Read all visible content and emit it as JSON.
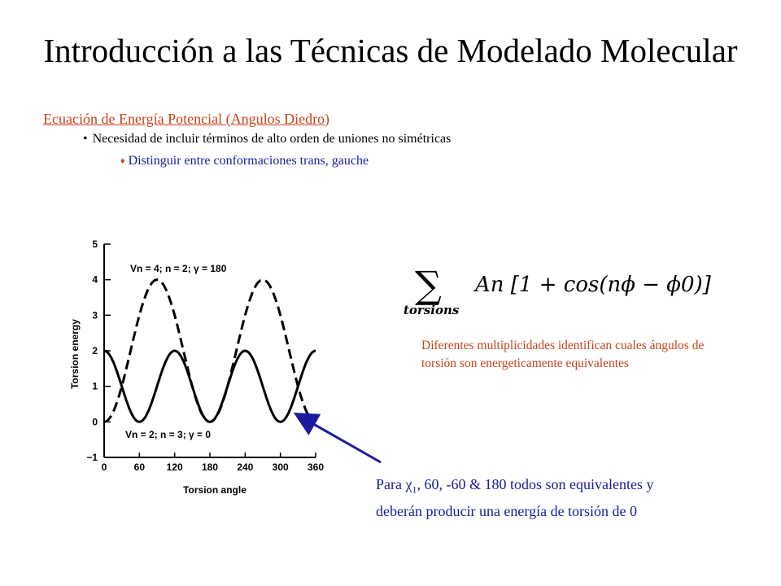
{
  "title": "Introducción a las Técnicas de Modelado Molecular",
  "heading": "Ecuación de Energía Potencial (Angulos Diedro)",
  "bullets": [
    {
      "marker": "•",
      "text": "Necesidad de incluir términos de alto orden de uniones no simétricas"
    },
    {
      "marker": "♦",
      "text": "Distinguir entre conformaciones trans, gauche"
    }
  ],
  "formula": {
    "sum_symbol": "∑",
    "subscript": "torsions",
    "expression": "An [1 + cos(nϕ − ϕ0)]"
  },
  "multiplicity_text": "Diferentes multiplicidades identifican cuales ángulos de torsión son energeticamente equivalentes",
  "note": {
    "prefix": "Para ",
    "chi": "χ",
    "chi_sub": "1",
    "rest": ", 60, -60 & 180 todos son equivalentes y deberán producir una energía de torsión de 0"
  },
  "colors": {
    "accent": "#c8421c",
    "blue": "#1a1aa0",
    "text": "#000000"
  },
  "chart_data": {
    "type": "line",
    "xlabel": "Torsion angle",
    "ylabel": "Torsion energy",
    "xlim": [
      0,
      360
    ],
    "ylim": [
      -1,
      5
    ],
    "xticks": [
      "0",
      "60",
      "120",
      "180",
      "240",
      "300",
      "360"
    ],
    "yticks": [
      "5",
      "4",
      "3",
      "2",
      "1",
      "0",
      "−1"
    ],
    "series": [
      {
        "name": "Vn = 4; n = 2; γ = 180",
        "style": "dashed",
        "Vn": 4,
        "n": 2,
        "gamma": 180
      },
      {
        "name": "Vn = 2; n = 3; γ = 0",
        "style": "solid",
        "Vn": 2,
        "n": 3,
        "gamma": 0
      }
    ]
  }
}
